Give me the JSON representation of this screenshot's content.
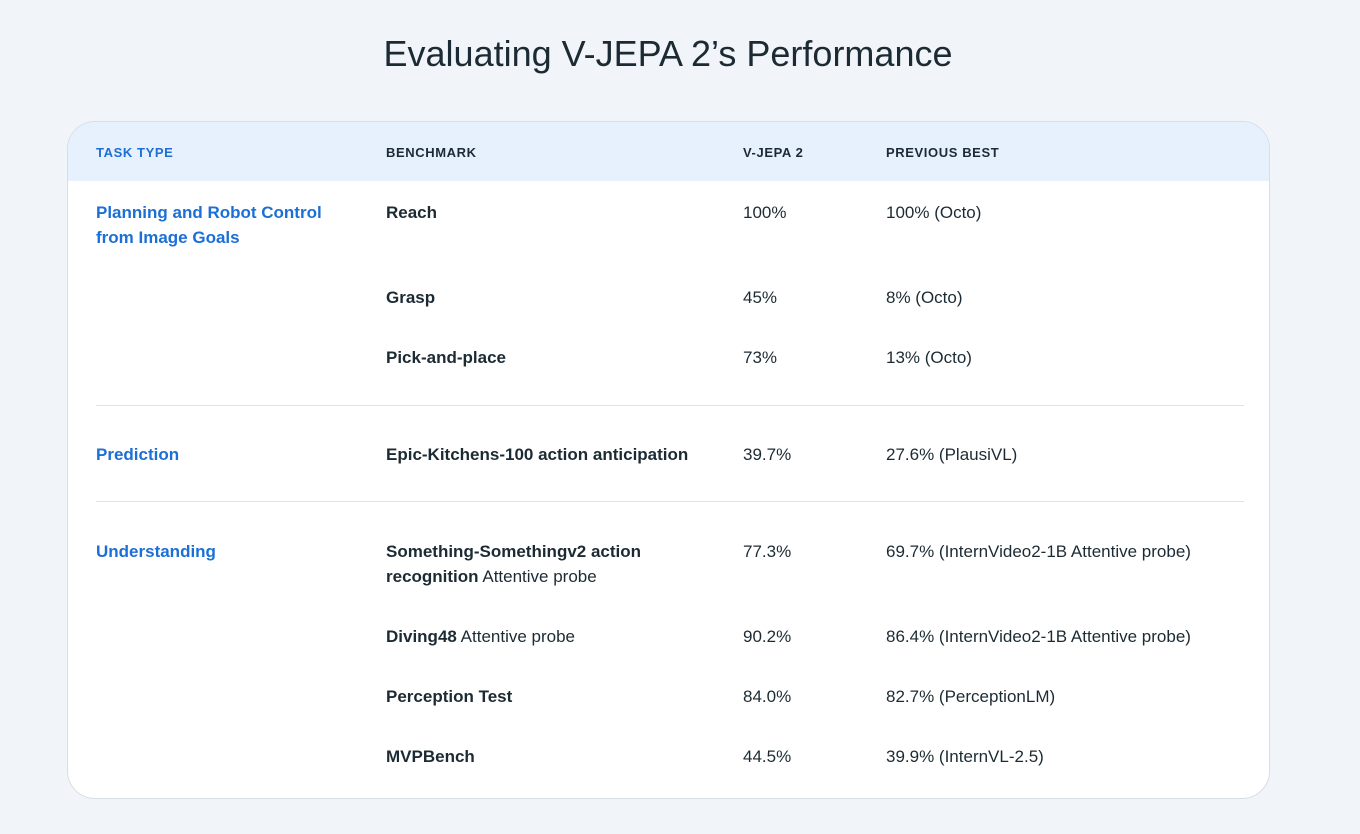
{
  "title": "Evaluating V-JEPA 2’s Performance",
  "table": {
    "headers": {
      "task_type": "TASK TYPE",
      "benchmark": "BENCHMARK",
      "vjepa": "V-JEPA 2",
      "previous_best": "PREVIOUS BEST"
    },
    "groups": [
      {
        "task": "Planning and Robot Control from Image Goals",
        "rows": [
          {
            "benchmark": "Reach",
            "note": "",
            "score": "100%",
            "previous": "100% (Octo)"
          },
          {
            "benchmark": "Grasp",
            "note": "",
            "score": "45%",
            "previous": "8% (Octo)"
          },
          {
            "benchmark": "Pick-and-place",
            "note": "",
            "score": "73%",
            "previous": "13% (Octo)"
          }
        ]
      },
      {
        "task": "Prediction",
        "rows": [
          {
            "benchmark": "Epic-Kitchens-100 action anticipation",
            "note": "",
            "score": "39.7%",
            "previous": "27.6% (PlausiVL)"
          }
        ]
      },
      {
        "task": "Understanding",
        "rows": [
          {
            "benchmark": "Something-Somethingv2 action recognition",
            "note": "Attentive probe",
            "score": "77.3%",
            "previous": "69.7% (InternVideo2-1B Attentive probe)"
          },
          {
            "benchmark": "Diving48",
            "note": "Attentive probe",
            "score": "90.2%",
            "previous": "86.4% (InternVideo2-1B Attentive probe)"
          },
          {
            "benchmark": "Perception Test",
            "note": "",
            "score": "84.0%",
            "previous": "82.7% (PerceptionLM)"
          },
          {
            "benchmark": "MVPBench",
            "note": "",
            "score": "44.5%",
            "previous": "39.9% (InternVL-2.5)"
          }
        ]
      }
    ]
  },
  "colors": {
    "accent": "#1b6fd6",
    "header_bg": "#e7f1fd",
    "page_bg": "#f1f4f8",
    "text": "#1c2b33"
  }
}
